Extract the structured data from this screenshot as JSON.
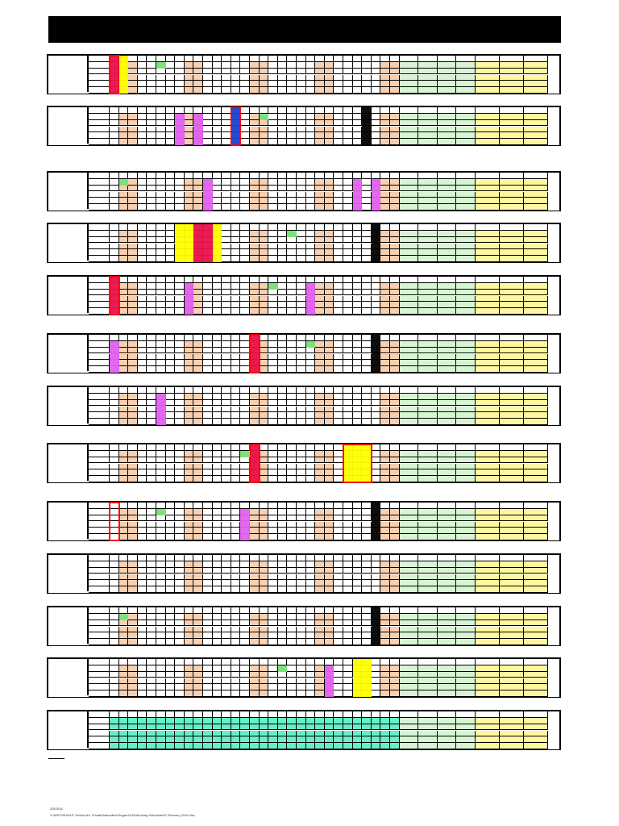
{
  "document": {
    "footer_date": "2/5/2016",
    "footer_path": "X:\\WP\\OSHA\\HT Section\\Dr. Private\\Marcelline\\Sugar\\2016\\Working Schedule\\02 February 2016.xlsx"
  },
  "colors": {
    "weekend": "#f8cfb0",
    "green": "#d7f5d3",
    "yellow": "#fff7a0",
    "teal": "#66efc8",
    "magenta": "#e060ee",
    "crimson": "#e8104a",
    "bright_yellow": "#ffff00",
    "blue": "#1d3fd0",
    "black": "#000000",
    "small_green": "#7ee07e",
    "small_blue": "#8aa3e0",
    "red_outline": "#ff0000"
  },
  "schedule": {
    "day_columns": 31,
    "weekend_columns": [
      2,
      3,
      9,
      10,
      16,
      17,
      23,
      24,
      30,
      31
    ],
    "rows": [
      {
        "id": "row-1",
        "marks": [
          "crimson-col-1",
          "yellow-col-2",
          "green-small-col-6"
        ]
      },
      {
        "id": "row-2",
        "marks": [
          "magenta-col-8",
          "magenta-col-10",
          "blue-col-14",
          "green-small-col-17",
          "black-col-28"
        ]
      },
      {
        "id": "row-3",
        "marks": [
          "green-small-col-2",
          "magenta-col-11",
          "magenta-col-27",
          "magenta-col-29"
        ]
      },
      {
        "id": "row-4",
        "marks": [
          "yellow-cols-8-9",
          "crimson-cols-10-11",
          "yellow-col-12",
          "green-small-col-20",
          "black-col-29"
        ]
      },
      {
        "id": "row-5",
        "marks": [
          "crimson-col-1",
          "magenta-col-9",
          "green-small-col-18",
          "magenta-col-22"
        ]
      },
      {
        "id": "row-6",
        "marks": [
          "magenta-col-1",
          "crimson-col-16",
          "green-small-col-22",
          "black-col-29"
        ]
      },
      {
        "id": "row-7",
        "marks": [
          "magenta-col-6"
        ]
      },
      {
        "id": "row-8",
        "marks": [
          "crimson-col-16",
          "green-small-col-15",
          "yellow-cols-26-27-28"
        ]
      },
      {
        "id": "row-9",
        "marks": [
          "red-outline-col-1",
          "green-small-col-6",
          "magenta-col-15",
          "black-col-29"
        ]
      },
      {
        "id": "row-10",
        "marks": []
      },
      {
        "id": "row-11",
        "marks": [
          "green-small-col-2",
          "black-col-29"
        ]
      },
      {
        "id": "row-12",
        "marks": [
          "magenta-col-24",
          "green-small-col-19",
          "yellow-cols-27-28"
        ]
      },
      {
        "id": "row-13",
        "marks": [
          "teal-cols-1-28"
        ]
      }
    ]
  }
}
